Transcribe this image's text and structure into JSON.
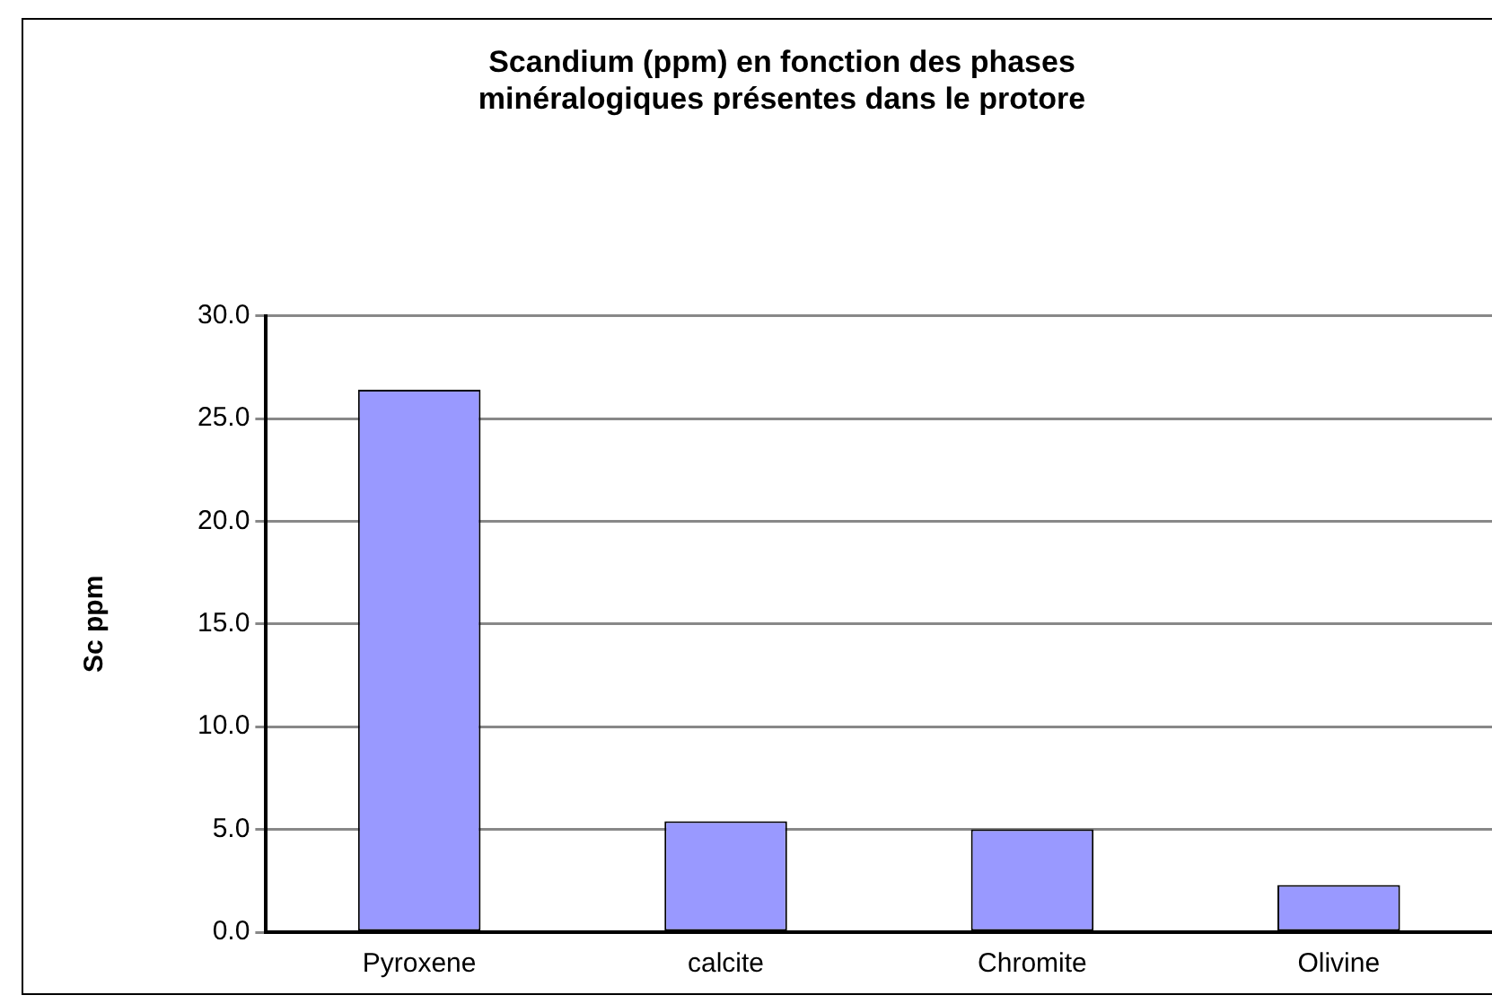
{
  "chart_data": {
    "type": "bar",
    "title": "Scandium (ppm) en fonction des phases\nminéralogiques présentes dans le protore",
    "ylabel": "Sc ppm",
    "categories": [
      "Pyroxene",
      "calcite",
      "Chromite",
      "Olivine"
    ],
    "values": [
      26.4,
      5.4,
      5.0,
      2.3
    ],
    "color": "#9999ff",
    "ylim": [
      0,
      30
    ],
    "yticks": [
      {
        "value": 0,
        "label": "0.0"
      },
      {
        "value": 5,
        "label": "5.0"
      },
      {
        "value": 10,
        "label": "10.0"
      },
      {
        "value": 15,
        "label": "15.0"
      },
      {
        "value": 20,
        "label": "20.0"
      },
      {
        "value": 25,
        "label": "25.0"
      },
      {
        "value": 30,
        "label": "30.0"
      }
    ],
    "grid": "y",
    "legend": false
  }
}
